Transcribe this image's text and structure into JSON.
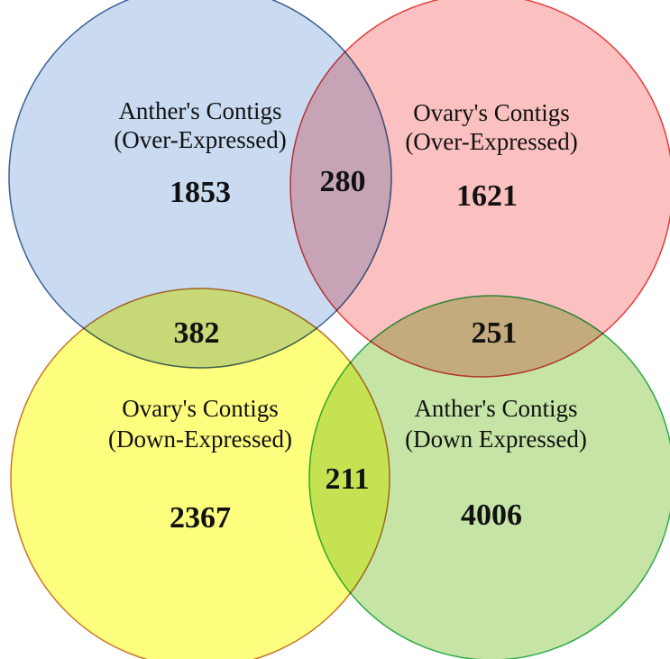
{
  "sets": [
    {
      "label": [
        "Anther's Contigs",
        "(Over-Expressed)"
      ],
      "count": 1853
    },
    {
      "label": [
        "Ovary's Contigs",
        "(Over-Expressed)"
      ],
      "count": 1621
    },
    {
      "label": [
        "Ovary's Contigs",
        "(Down-Expressed)"
      ],
      "count": 2367
    },
    {
      "label": [
        "Anther's Contigs",
        "(Down Expressed)"
      ],
      "count": 4006
    }
  ],
  "overlaps": [
    {
      "count": 280
    },
    {
      "count": 382
    },
    {
      "count": 251
    },
    {
      "count": 211
    }
  ]
}
